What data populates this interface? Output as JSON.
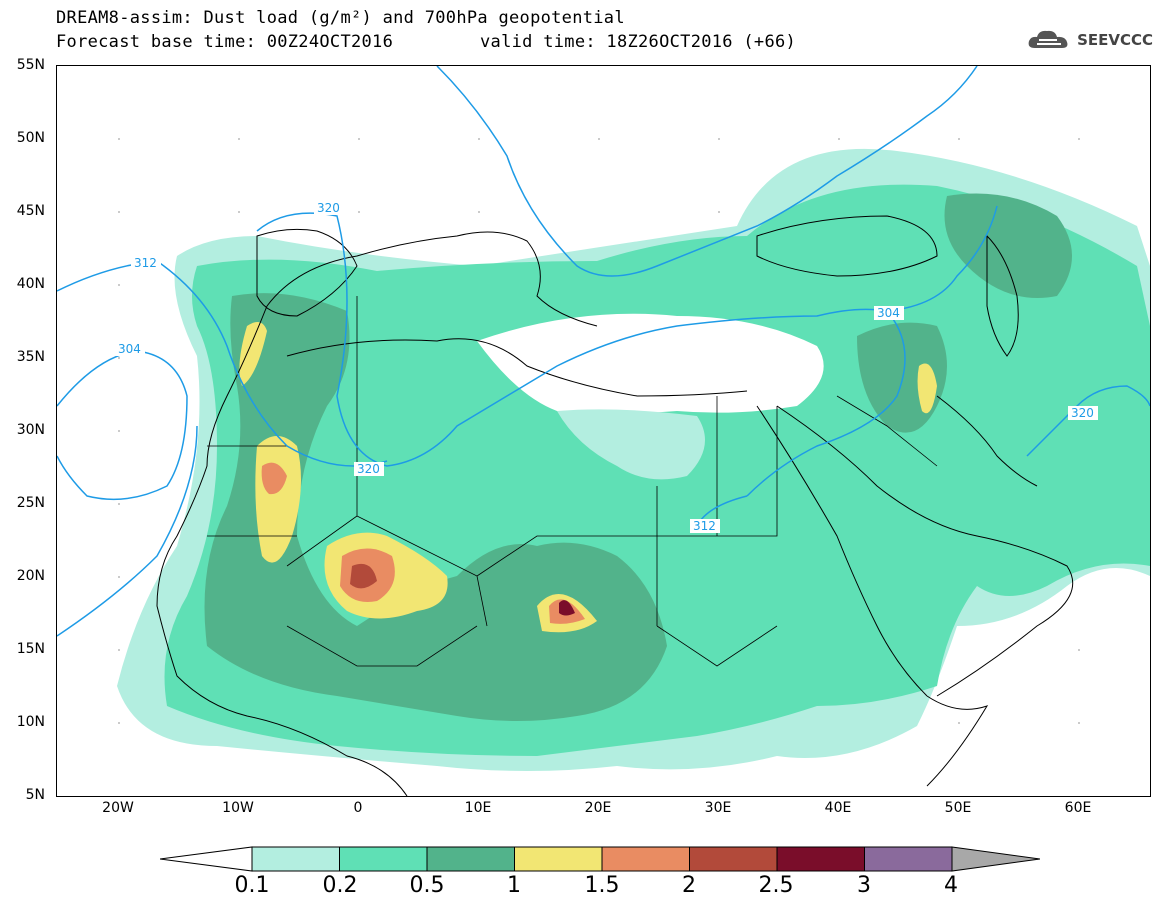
{
  "header": {
    "title_line1": "DREAM8-assim: Dust load (g/m²) and 700hPa geopotential",
    "title_line2_left": "Forecast base time: 00Z24OCT2016",
    "title_line2_right": "valid time: 18Z26OCT2016 (+66)",
    "logo_text": "SEEVCCC"
  },
  "map": {
    "lat_ticks": [
      "55N",
      "50N",
      "45N",
      "40N",
      "35N",
      "30N",
      "25N",
      "20N",
      "15N",
      "10N",
      "5N"
    ],
    "lon_ticks": [
      "20W",
      "10W",
      "0",
      "10E",
      "20E",
      "30E",
      "40E",
      "50E",
      "60E"
    ],
    "contour_labels": [
      "320",
      "312",
      "304",
      "320",
      "312",
      "304",
      "320"
    ]
  },
  "colorbar": {
    "labels": [
      "0.1",
      "0.2",
      "0.5",
      "1",
      "1.5",
      "2",
      "2.5",
      "3",
      "4"
    ],
    "colors": [
      "#b3eee0",
      "#5fe0b5",
      "#52b38b",
      "#f2e673",
      "#e98c62",
      "#b24a3a",
      "#7a0d2a",
      "#8a6a9c",
      "#a8a8a8"
    ]
  }
}
